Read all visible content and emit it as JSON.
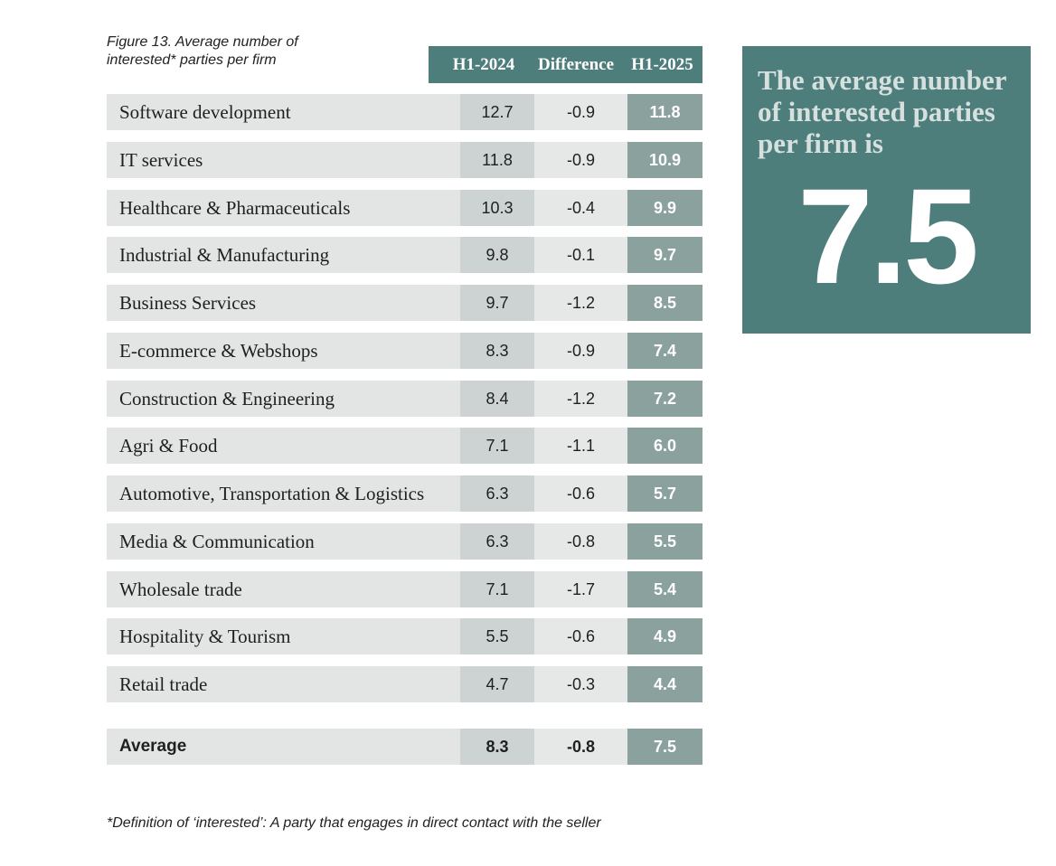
{
  "figure_caption": "Figure 13. Average number of interested* parties per firm",
  "table": {
    "columns": [
      "H1-2024",
      "Difference",
      "H1-2025"
    ],
    "rows": [
      [
        "Software development",
        "12.7",
        "-0.9",
        "11.8"
      ],
      [
        "IT services",
        "11.8",
        "-0.9",
        "10.9"
      ],
      [
        "Healthcare & Pharmaceuticals",
        "10.3",
        "-0.4",
        "9.9"
      ],
      [
        "Industrial & Manufacturing",
        "9.8",
        "-0.1",
        "9.7"
      ],
      [
        "Business Services",
        "9.7",
        "-1.2",
        "8.5"
      ],
      [
        "E-commerce & Webshops",
        "8.3",
        "-0.9",
        "7.4"
      ],
      [
        "Construction & Engineering",
        "8.4",
        "-1.2",
        "7.2"
      ],
      [
        "Agri & Food",
        "7.1",
        "-1.1",
        "6.0"
      ],
      [
        "Automotive, Transportation & Logistics",
        "6.3",
        "-0.6",
        "5.7"
      ],
      [
        "Media & Communication",
        "6.3",
        "-0.8",
        "5.5"
      ],
      [
        "Wholesale trade",
        "7.1",
        "-1.7",
        "5.4"
      ],
      [
        "Hospitality & Tourism",
        "5.5",
        "-0.6",
        "4.9"
      ],
      [
        "Retail trade",
        "4.7",
        "-0.3",
        "4.4"
      ]
    ],
    "average": [
      "Average",
      "8.3",
      "-0.8",
      "7.5"
    ]
  },
  "callout": {
    "text": "The average number of interested parties per firm is",
    "value": "7.5"
  },
  "footnote": "*Definition of ‘interested’: A party that engages in direct contact with the seller"
}
